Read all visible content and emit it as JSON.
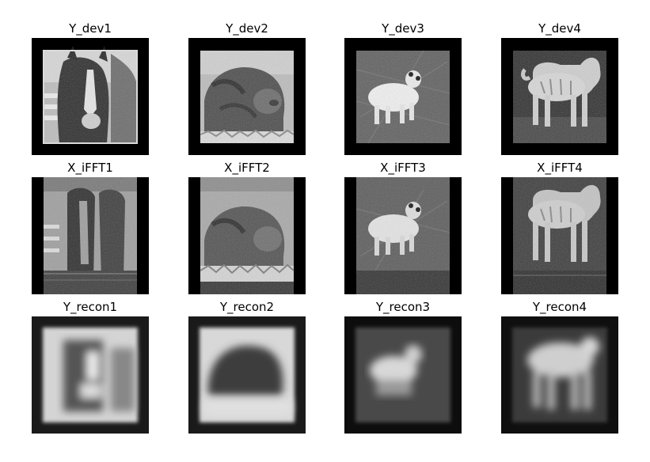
{
  "figure": {
    "rows": [
      {
        "titles": [
          "Y_dev1",
          "Y_dev2",
          "Y_dev3",
          "Y_dev4"
        ]
      },
      {
        "titles": [
          "X_iFFT1",
          "X_iFFT2",
          "X_iFFT3",
          "X_iFFT4"
        ]
      },
      {
        "titles": [
          "Y_recon1",
          "Y_recon2",
          "Y_recon3",
          "Y_recon4"
        ]
      }
    ]
  }
}
